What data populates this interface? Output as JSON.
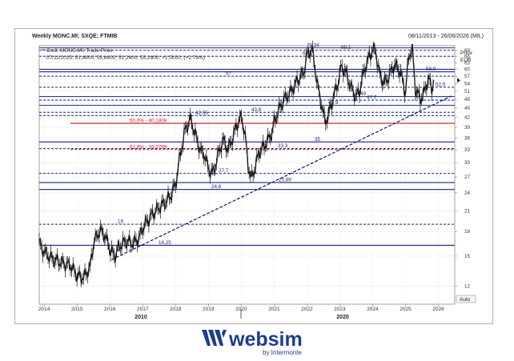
{
  "header": {
    "title": "Weekly MONC.MI; SXQE; FTMIB",
    "date_range": "08/11/2013 - 26/06/2026 (MIL)"
  },
  "legend": {
    "line1": "Cndl; MONC.MI; Trade Price",
    "line2": "07/11/2025; 51,8800; 55,8600; 51,2400; 55,2800; +1,5000; (+2,79%)"
  },
  "axis": {
    "price_label": "Price",
    "currency_label": "EUR",
    "auto_label": "Auto",
    "decade_labels": [
      "2010",
      "2020"
    ]
  },
  "logo": {
    "name": "websim",
    "tagline": "by Intermonte",
    "icon": "websim-w-icon",
    "brand_color": "#1b3d8f"
  },
  "chart_data": {
    "type": "candlestick",
    "title": "Weekly MONC.MI; SXQE; FTMIB",
    "xlabel": "",
    "ylabel": "Price EUR",
    "xlim": [
      2013.85,
      2026.5
    ],
    "ylim": [
      10.5,
      71.5
    ],
    "y_scale": "log",
    "grid": true,
    "x_ticks": [
      "2014",
      "2015",
      "2016",
      "2017",
      "2018",
      "2019",
      "2020",
      "2021",
      "2022",
      "2023",
      "2024",
      "2025",
      "2026"
    ],
    "y_ticks": [
      12,
      15,
      18,
      21,
      24,
      27,
      30,
      33,
      36,
      39,
      42,
      45,
      48,
      51,
      54,
      57,
      60,
      63,
      66,
      69
    ],
    "last_candle": {
      "date": "07/11/2025",
      "open": 51.88,
      "high": 55.86,
      "low": 51.24,
      "close": 55.28,
      "change": 1.5,
      "change_pct": 2.79
    },
    "price_series": {
      "x": [
        2013.85,
        2014.0,
        2014.2,
        2014.4,
        2014.6,
        2014.8,
        2015.0,
        2015.2,
        2015.4,
        2015.5,
        2015.7,
        2015.85,
        2016.0,
        2016.15,
        2016.3,
        2016.5,
        2016.7,
        2016.9,
        2017.0,
        2017.15,
        2017.3,
        2017.5,
        2017.7,
        2017.85,
        2018.0,
        2018.15,
        2018.3,
        2018.45,
        2018.6,
        2018.75,
        2018.9,
        2019.0,
        2019.15,
        2019.3,
        2019.45,
        2019.6,
        2019.75,
        2019.9,
        2020.0,
        2020.1,
        2020.2,
        2020.3,
        2020.4,
        2020.55,
        2020.7,
        2020.85,
        2020.95,
        2021.0,
        2021.15,
        2021.3,
        2021.5,
        2021.7,
        2021.9,
        2022.0,
        2022.15,
        2022.25,
        2022.35,
        2022.45,
        2022.55,
        2022.65,
        2022.8,
        2022.95,
        2023.05,
        2023.2,
        2023.35,
        2023.5,
        2023.6,
        2023.75,
        2023.9,
        2024.0,
        2024.1,
        2024.2,
        2024.35,
        2024.5,
        2024.65,
        2024.8,
        2024.9,
        2025.0,
        2025.1,
        2025.2,
        2025.3,
        2025.45,
        2025.55,
        2025.7,
        2025.8,
        2025.86
      ],
      "close": [
        16.5,
        15.5,
        14.8,
        14.5,
        14.2,
        14.0,
        13.0,
        12.8,
        13.8,
        16.5,
        18.2,
        17.5,
        15.8,
        15.0,
        16.2,
        16.8,
        16.5,
        17.2,
        18.5,
        19.5,
        20.5,
        21.5,
        22.5,
        23.5,
        25.5,
        32.0,
        38.5,
        41.5,
        37.0,
        33.0,
        31.5,
        28.5,
        27.8,
        32.0,
        35.5,
        33.0,
        36.5,
        40.5,
        42.0,
        38.0,
        30.0,
        26.5,
        28.5,
        32.5,
        34.0,
        36.0,
        38.0,
        40.5,
        44.5,
        48.0,
        50.5,
        55.0,
        58.5,
        66.5,
        70.0,
        60.0,
        51.0,
        46.0,
        40.5,
        42.5,
        48.5,
        54.5,
        61.5,
        58.0,
        52.0,
        49.0,
        51.0,
        60.0,
        66.0,
        69.5,
        68.0,
        58.0,
        54.0,
        57.0,
        62.0,
        60.0,
        56.0,
        50.0,
        66.0,
        70.0,
        52.0,
        48.0,
        50.0,
        56.0,
        52.0,
        55.28
      ]
    },
    "horizontal_levels": [
      {
        "label": "70,34",
        "value": 70.34,
        "style": "solid",
        "color": "#1a237e"
      },
      {
        "label": "69,1",
        "value": 69.1,
        "style": "dash",
        "color": "#1a237e"
      },
      {
        "label": "66,1",
        "value": 66.1,
        "style": "dash",
        "color": "#1a237e"
      },
      {
        "label": "60",
        "value": 60.0,
        "style": "solid",
        "color": "#1a237e"
      },
      {
        "label": "58,9",
        "value": 58.9,
        "style": "solid",
        "color": "#1a237e"
      },
      {
        "label": "57",
        "value": 57.0,
        "style": "dash",
        "color": "#1a237e"
      },
      {
        "label": "52,5",
        "value": 52.5,
        "style": "dash",
        "color": "#1a237e"
      },
      {
        "label": "49",
        "value": 49.0,
        "style": "solid",
        "color": "#1a237e"
      },
      {
        "label": "47,7",
        "value": 47.7,
        "style": "dash",
        "color": "#1a237e"
      },
      {
        "label": "45,9",
        "value": 45.9,
        "style": "solid",
        "color": "#1a237e"
      },
      {
        "label": "43,6",
        "value": 43.6,
        "style": "dash",
        "color": "#1a237e"
      },
      {
        "label": "42,55",
        "value": 42.55,
        "style": "dash",
        "color": "#1a237e"
      },
      {
        "label": "50,0% - 40,1808",
        "value": 40.1808,
        "style": "solid",
        "color": "#cc1111"
      },
      {
        "label": "35",
        "value": 35.0,
        "style": "solid",
        "color": "#1a237e"
      },
      {
        "label": "61,8% - 33,0799",
        "value": 33.0799,
        "style": "dash",
        "color": "#cc1111"
      },
      {
        "label": "33,3",
        "value": 33.3,
        "style": "dash",
        "color": "#1a237e"
      },
      {
        "label": "27,7",
        "value": 27.7,
        "style": "dash",
        "color": "#1a237e"
      },
      {
        "label": "25,89",
        "value": 25.89,
        "style": "solid",
        "color": "#1a237e"
      },
      {
        "label": "24,6",
        "value": 24.6,
        "style": "solid",
        "color": "#1a237e"
      },
      {
        "label": "19",
        "value": 19.0,
        "style": "dash",
        "color": "#1a237e"
      },
      {
        "label": "16,25",
        "value": 16.25,
        "style": "solid",
        "color": "#1a237e"
      }
    ],
    "trendline": {
      "x": [
        2016.05,
        2026.4
      ],
      "y": [
        14.6,
        49.2
      ],
      "style": "dash",
      "color": "#1a237e"
    }
  }
}
